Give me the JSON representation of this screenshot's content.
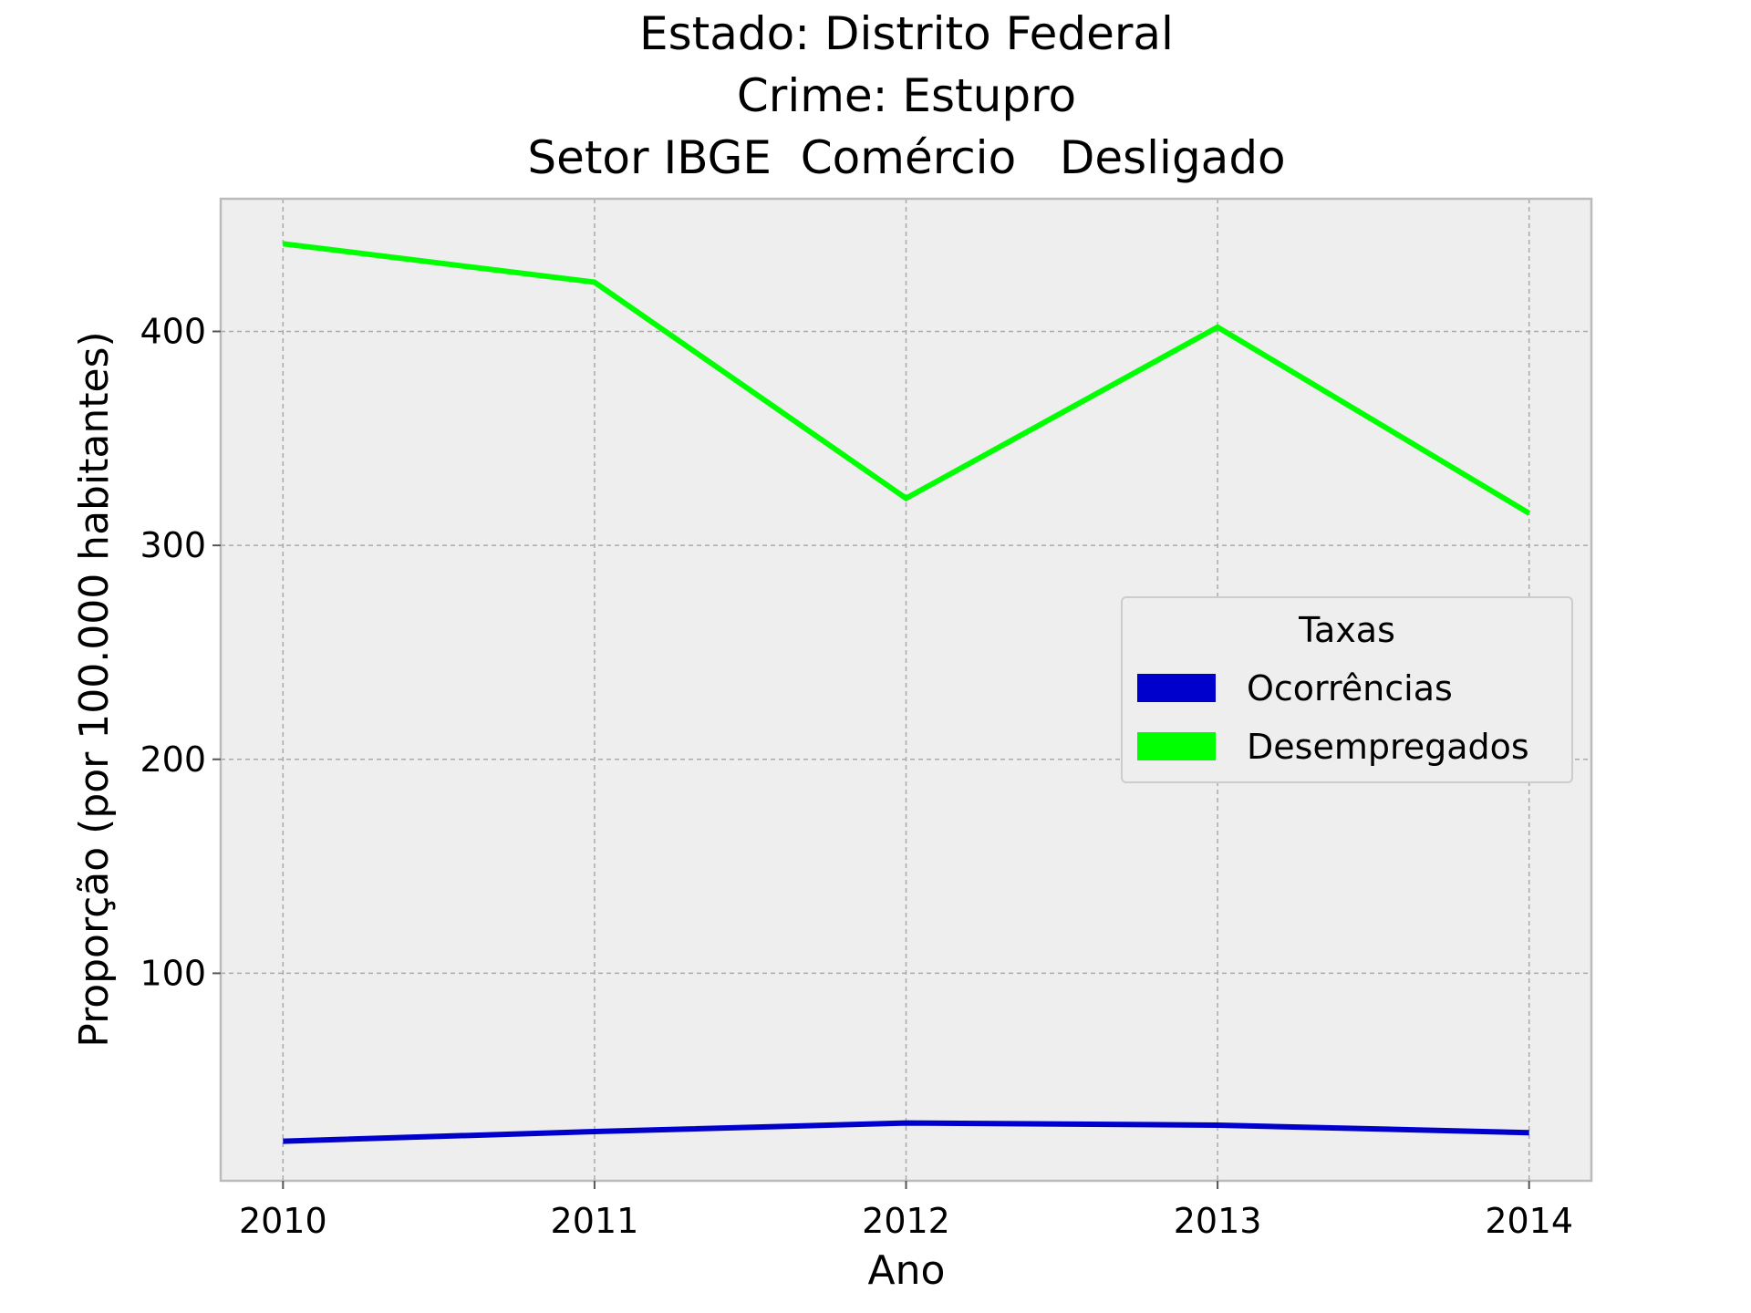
{
  "chart_data": {
    "type": "line",
    "title_lines": [
      "Estado: Distrito Federal",
      "Crime: Estupro",
      "Setor IBGE  Comércio   Desligado"
    ],
    "xlabel": "Ano",
    "ylabel": "Proporção (por 100.000 habitantes)",
    "x": [
      2010,
      2011,
      2012,
      2013,
      2014
    ],
    "x_tick_labels": [
      "2010",
      "2011",
      "2012",
      "2013",
      "2014"
    ],
    "y_ticks": [
      100,
      200,
      300,
      400
    ],
    "y_tick_labels": [
      "100",
      "200",
      "300",
      "400"
    ],
    "xlim": [
      2009.8,
      2014.2
    ],
    "ylim": [
      3,
      462
    ],
    "grid": true,
    "legend": {
      "title": "Taxas",
      "placement": "center-right"
    },
    "series": [
      {
        "name": "Ocorrências",
        "color": "#0000cc",
        "values": [
          21.5,
          26,
          30,
          29,
          25.5
        ]
      },
      {
        "name": "Desempregados",
        "color": "#00ff00",
        "values": [
          441,
          423,
          322,
          402,
          315
        ]
      }
    ]
  }
}
